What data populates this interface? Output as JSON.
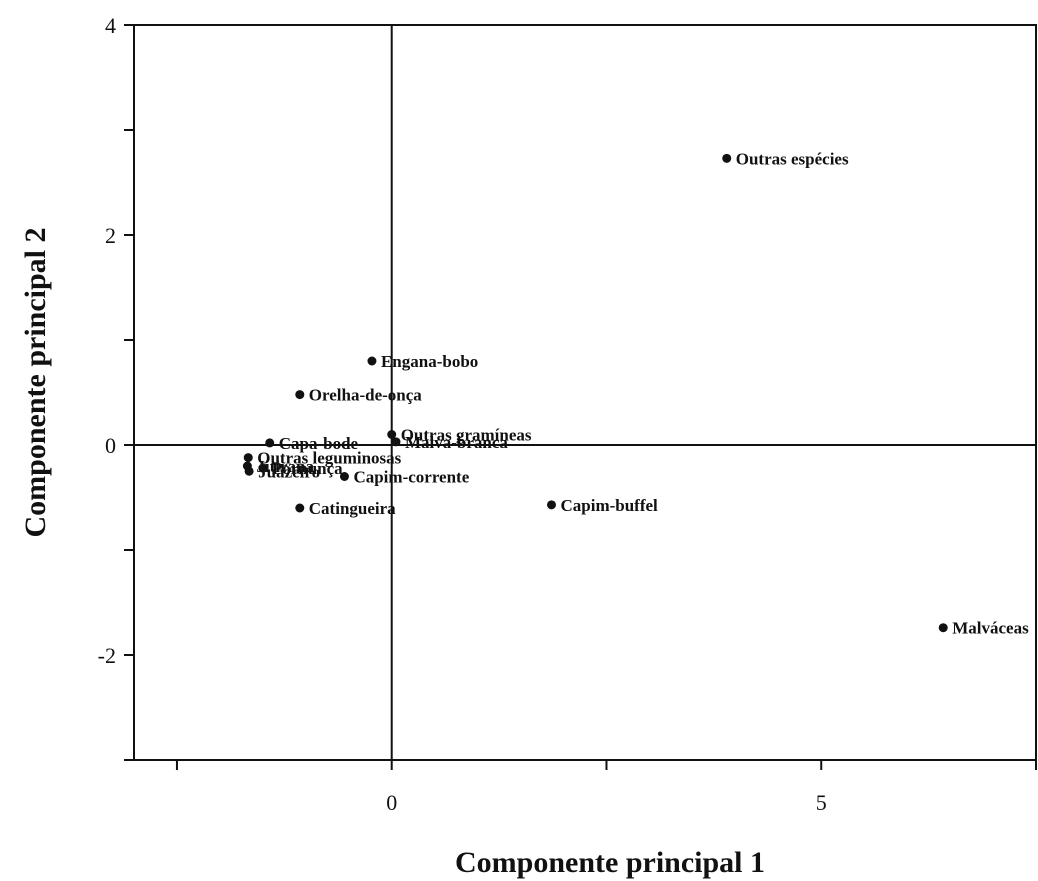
{
  "chart_data": {
    "type": "scatter",
    "xlabel": "Componente principal 1",
    "ylabel": "Componente principal 2",
    "xlim": [
      -3,
      7.5
    ],
    "ylim": [
      -3,
      4
    ],
    "xticks": [
      -2.5,
      0,
      2.5,
      5,
      7.5
    ],
    "xtick_labels": [
      "",
      "0",
      "",
      "5",
      ""
    ],
    "yticks": [
      -3,
      -2,
      -1,
      0,
      1,
      2,
      3,
      4
    ],
    "ytick_labels": [
      "",
      "-2",
      "",
      "0",
      "",
      "2",
      "",
      "4"
    ],
    "zero_lines": true,
    "grid": false,
    "points": [
      {
        "label": "Outras espécies",
        "x": 3.9,
        "y": 2.73
      },
      {
        "label": "Engana-bobo",
        "x": -0.23,
        "y": 0.8
      },
      {
        "label": "Orelha-de-onça",
        "x": -1.07,
        "y": 0.48
      },
      {
        "label": "Outras gramíneas",
        "x": 0.0,
        "y": 0.1
      },
      {
        "label": "Capa-bode",
        "x": -1.42,
        "y": 0.02
      },
      {
        "label": "Malva-branca",
        "x": 0.05,
        "y": 0.03
      },
      {
        "label": "Outras leguminosas",
        "x": -1.67,
        "y": -0.12
      },
      {
        "label": "Jitirana",
        "x": -1.68,
        "y": -0.2
      },
      {
        "label": "Juazeiro",
        "x": -1.66,
        "y": -0.25
      },
      {
        "label": "Pornunça",
        "x": -1.5,
        "y": -0.22
      },
      {
        "label": "Catingueira",
        "x": -1.07,
        "y": -0.6
      },
      {
        "label": "Capim-corrente",
        "x": -0.55,
        "y": -0.3
      },
      {
        "label": "Capim-buffel",
        "x": 1.86,
        "y": -0.57
      },
      {
        "label": "Malváceas",
        "x": 6.42,
        "y": -1.74
      }
    ]
  }
}
